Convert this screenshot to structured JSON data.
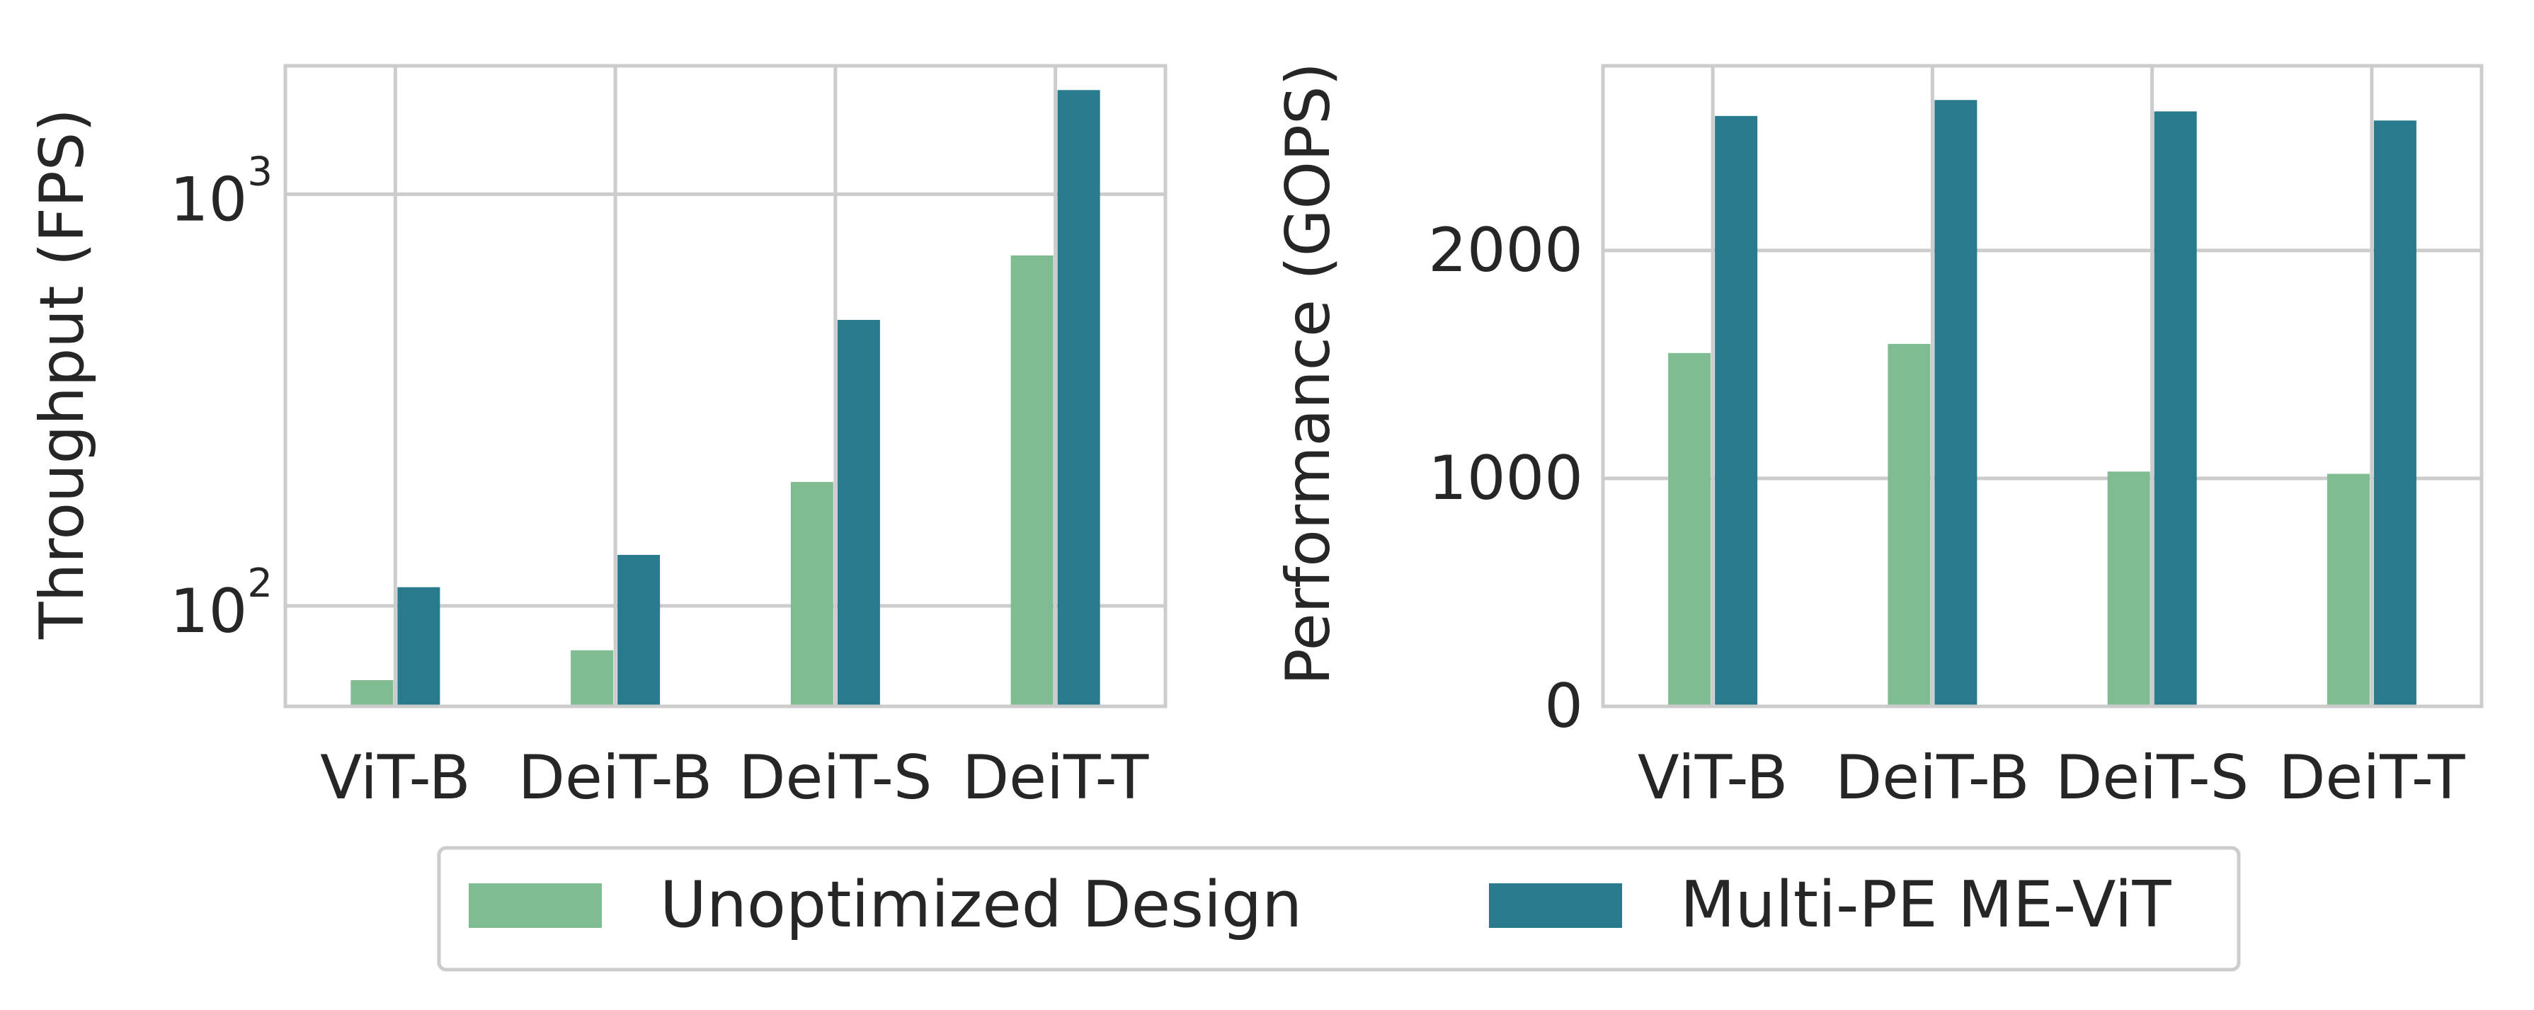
{
  "colors": {
    "unoptimized": "#7fbc91",
    "multi_pe": "#287a8c",
    "grid": "#cccccc",
    "axis": "#cccccc",
    "text": "#262626"
  },
  "legend": {
    "entries": [
      "Unoptimized Design",
      "Multi-PE ME-ViT"
    ],
    "placement": "bottom-center"
  },
  "chart_data": [
    {
      "type": "bar",
      "yscale": "log",
      "title": "",
      "xlabel": "",
      "ylabel": "Throughput (FPS)",
      "categories": [
        "ViT-B",
        "DeiT-B",
        "DeiT-S",
        "DeiT-T"
      ],
      "ylim": [
        57,
        2050
      ],
      "yticks": [
        {
          "base": "10",
          "exp": "2",
          "value": 100
        },
        {
          "base": "10",
          "exp": "3",
          "value": 1000
        }
      ],
      "series": [
        {
          "name": "Unoptimized Design",
          "values": [
            66,
            78,
            200,
            710
          ]
        },
        {
          "name": "Multi-PE ME-ViT",
          "values": [
            111,
            133,
            495,
            1790
          ]
        }
      ]
    },
    {
      "type": "bar",
      "yscale": "linear",
      "title": "",
      "xlabel": "",
      "ylabel": "Performance (GOPS)",
      "categories": [
        "ViT-B",
        "DeiT-B",
        "DeiT-S",
        "DeiT-T"
      ],
      "ylim": [
        0,
        2810
      ],
      "yticks": [
        {
          "label": "0",
          "value": 0
        },
        {
          "label": "1000",
          "value": 1000
        },
        {
          "label": "2000",
          "value": 2000
        }
      ],
      "series": [
        {
          "name": "Unoptimized Design",
          "values": [
            1550,
            1590,
            1030,
            1020
          ]
        },
        {
          "name": "Multi-PE ME-ViT",
          "values": [
            2590,
            2660,
            2610,
            2570
          ]
        }
      ]
    }
  ]
}
